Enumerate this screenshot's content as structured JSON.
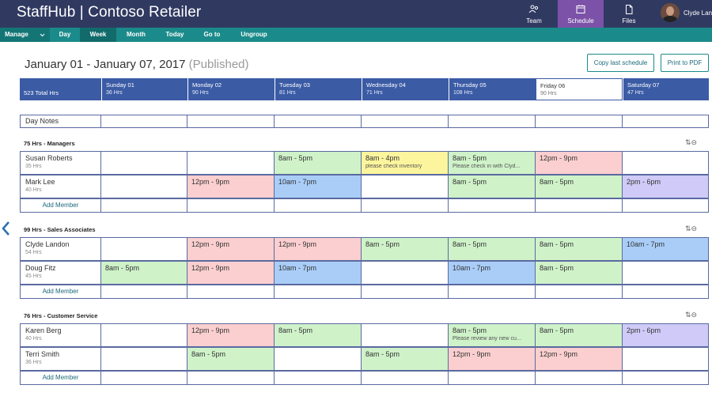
{
  "app": {
    "title": "StaffHub | Contoso Retailer",
    "nav": [
      {
        "label": "Team",
        "icon": "team-icon",
        "active": false
      },
      {
        "label": "Schedule",
        "icon": "calendar-icon",
        "active": true
      },
      {
        "label": "Files",
        "icon": "file-icon",
        "active": false
      }
    ],
    "user_name": "Clyde Landon"
  },
  "toolbar": {
    "manage": "Manage",
    "day": "Day",
    "week": "Week",
    "month": "Month",
    "today": "Today",
    "goto": "Go to",
    "ungroup": "Ungroup"
  },
  "header": {
    "date_range": "January 01 - January 07, 2017",
    "status": "(Published)",
    "copy_button": "Copy last schedule",
    "print_button": "Print to PDF"
  },
  "days": {
    "total": "523 Total Hrs",
    "list": [
      {
        "name": "Sunday 01",
        "hrs": "36 Hrs"
      },
      {
        "name": "Monday 02",
        "hrs": "90 Hrs"
      },
      {
        "name": "Tuesday 03",
        "hrs": "81 Hrs"
      },
      {
        "name": "Wednesday 04",
        "hrs": "71 Hrs"
      },
      {
        "name": "Thursday 05",
        "hrs": "108 Hrs"
      },
      {
        "name": "Friday 06",
        "hrs": "90 Hrs"
      },
      {
        "name": "Saturday 07",
        "hrs": "47 Hrs"
      }
    ]
  },
  "day_notes_label": "Day Notes",
  "add_member_label": "Add Member",
  "groups": [
    {
      "title": "75 Hrs - Managers",
      "members": [
        {
          "name": "Susan Roberts",
          "hrs": "35 Hrs",
          "shifts": [
            null,
            null,
            {
              "time": "8am - 5pm",
              "color": "green"
            },
            {
              "time": "8am - 4pm",
              "color": "yellow",
              "note": "please check inventory"
            },
            {
              "time": "8am - 5pm",
              "color": "green",
              "note": "Please check in with Clyd..."
            },
            {
              "time": "12pm - 9pm",
              "color": "red"
            },
            null
          ]
        },
        {
          "name": "Mark Lee",
          "hrs": "40 Hrs",
          "shifts": [
            null,
            {
              "time": "12pm - 9pm",
              "color": "red"
            },
            {
              "time": "10am - 7pm",
              "color": "blue"
            },
            null,
            {
              "time": "8am - 5pm",
              "color": "green"
            },
            {
              "time": "8am - 5pm",
              "color": "green"
            },
            {
              "time": "2pm - 6pm",
              "color": "purple"
            }
          ]
        }
      ]
    },
    {
      "title": "99 Hrs - Sales Associates",
      "members": [
        {
          "name": "Clyde Landon",
          "hrs": "54 Hrs",
          "shifts": [
            null,
            {
              "time": "12pm - 9pm",
              "color": "red"
            },
            {
              "time": "12pm - 9pm",
              "color": "red"
            },
            {
              "time": "8am - 5pm",
              "color": "green"
            },
            {
              "time": "8am - 5pm",
              "color": "green"
            },
            {
              "time": "8am - 5pm",
              "color": "green"
            },
            {
              "time": "10am - 7pm",
              "color": "blue"
            }
          ]
        },
        {
          "name": "Doug Fitz",
          "hrs": "45 Hrs",
          "shifts": [
            {
              "time": "8am - 5pm",
              "color": "green"
            },
            {
              "time": "12pm - 9pm",
              "color": "red"
            },
            {
              "time": "10am - 7pm",
              "color": "blue"
            },
            null,
            {
              "time": "10am - 7pm",
              "color": "blue"
            },
            {
              "time": "8am - 5pm",
              "color": "green"
            },
            null
          ]
        }
      ]
    },
    {
      "title": "76 Hrs - Customer Service",
      "members": [
        {
          "name": "Karen Berg",
          "hrs": "40 Hrs",
          "shifts": [
            null,
            {
              "time": "12pm - 9pm",
              "color": "red"
            },
            {
              "time": "8am - 5pm",
              "color": "green"
            },
            null,
            {
              "time": "8am - 5pm",
              "color": "green",
              "note": "Please review any new cu..."
            },
            {
              "time": "8am - 5pm",
              "color": "green"
            },
            {
              "time": "2pm - 6pm",
              "color": "purple"
            }
          ]
        },
        {
          "name": "Terri Smith",
          "hrs": "36 Hrs",
          "shifts": [
            null,
            {
              "time": "8am - 5pm",
              "color": "green"
            },
            null,
            {
              "time": "8am - 5pm",
              "color": "green"
            },
            {
              "time": "12pm - 9pm",
              "color": "red"
            },
            {
              "time": "12pm - 9pm",
              "color": "red"
            },
            null
          ]
        }
      ]
    }
  ],
  "colors": {
    "topbar": "#303a61",
    "accent_teal": "#1b8a8a",
    "active_nav": "#7c52a8",
    "day_header": "#3b5ba5",
    "green": "#cff2c9",
    "red": "#fbcfcf",
    "blue": "#a9cdf7",
    "yellow": "#fdf59d",
    "purple": "#cfcaf7"
  }
}
